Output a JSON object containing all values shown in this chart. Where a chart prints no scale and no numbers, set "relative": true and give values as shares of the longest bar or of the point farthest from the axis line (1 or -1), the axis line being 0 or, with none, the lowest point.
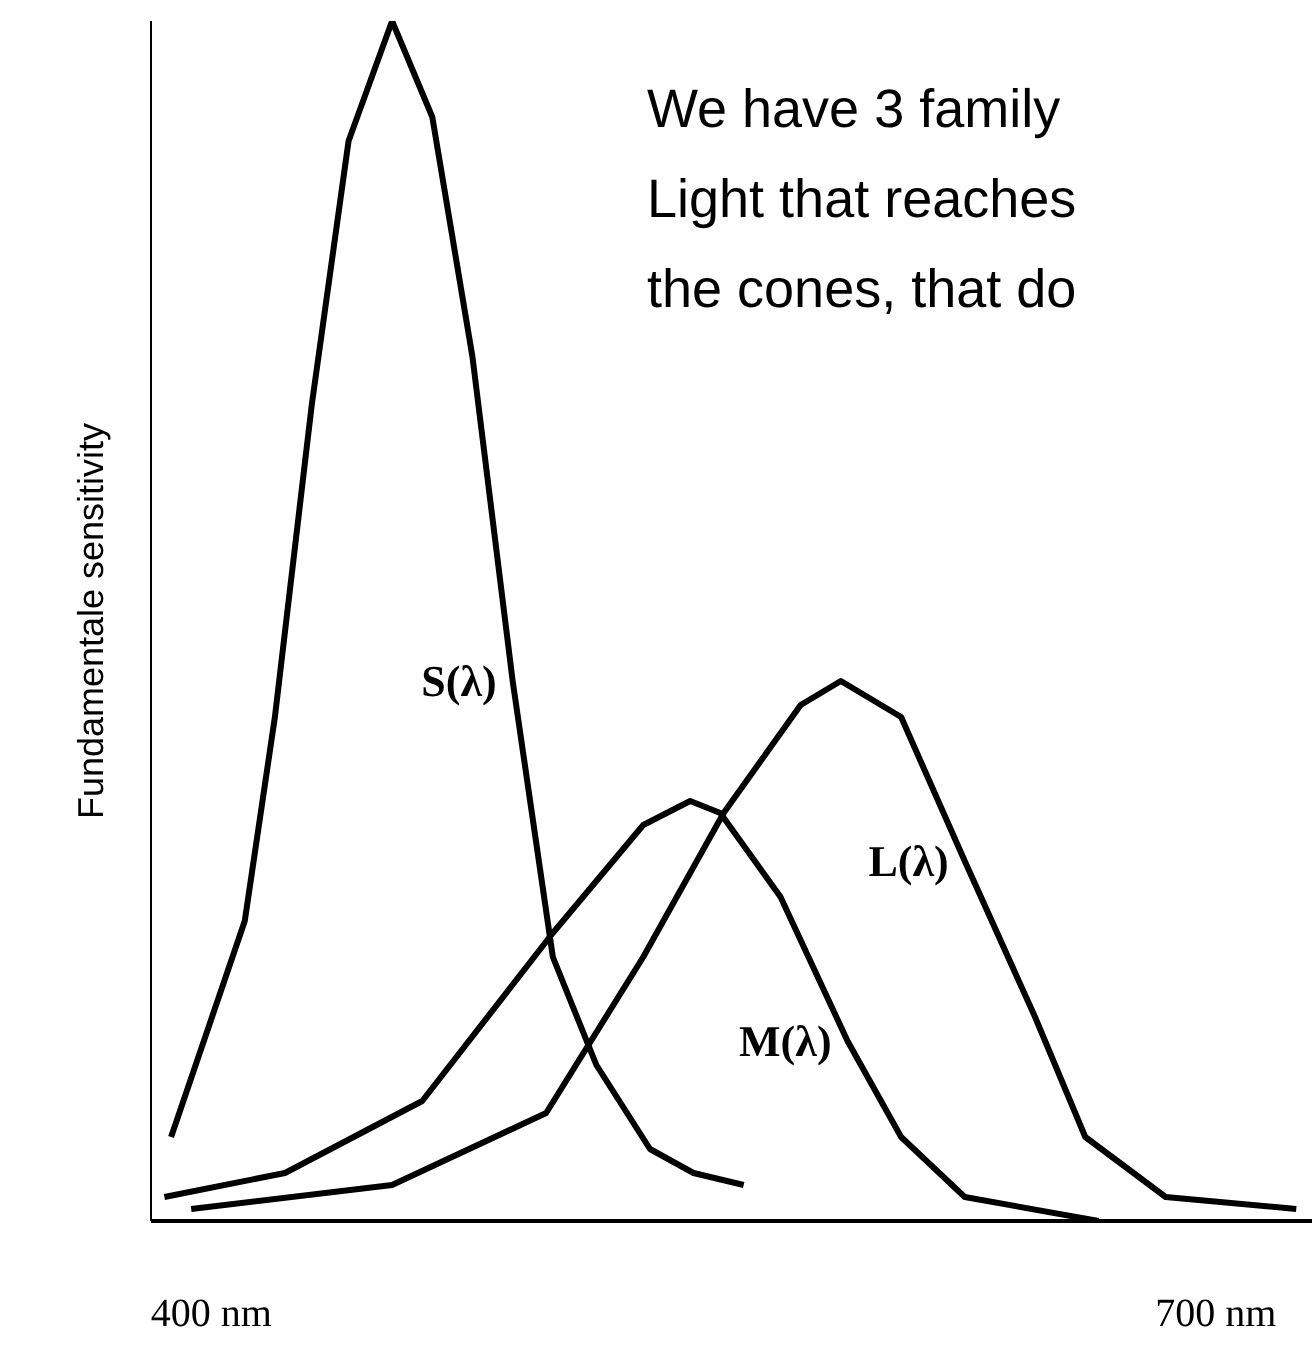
{
  "chart_data": {
    "type": "line",
    "relative": true,
    "xlim": [
      382,
      729
    ],
    "xticks": [
      {
        "value": 400,
        "label": "400 nm"
      },
      {
        "value": 700,
        "label": "700 nm"
      }
    ],
    "ylabel": "Fundamentale sensitivity",
    "grid": false,
    "marker": "none",
    "line_style": "solid",
    "tick_labels": "x",
    "annotations": [
      "We have 3 family",
      "Light that reaches",
      "the cones, that do"
    ],
    "series": [
      {
        "name": "S(λ)",
        "color": "#000000",
        "x": [
          388,
          410,
          419,
          430,
          441,
          454,
          466,
          478,
          490,
          502,
          515,
          531,
          544,
          559
        ],
        "values": [
          0.07,
          0.25,
          0.42,
          0.68,
          0.9,
          1,
          0.92,
          0.72,
          0.45,
          0.22,
          0.13,
          0.06,
          0.04,
          0.03
        ]
      },
      {
        "name": "M(λ)",
        "color": "#000000",
        "x": [
          386,
          422,
          463,
          502,
          529,
          543,
          552,
          570,
          590,
          606,
          625,
          665
        ],
        "values": [
          0.02,
          0.04,
          0.1,
          0.24,
          0.33,
          0.35,
          0.34,
          0.27,
          0.15,
          0.07,
          0.02,
          0.0
        ]
      },
      {
        "name": "L(λ)",
        "color": "#000000",
        "x": [
          394,
          454,
          500,
          529,
          553,
          576,
          588,
          606,
          625,
          646,
          661,
          685,
          724
        ],
        "values": [
          0.01,
          0.03,
          0.09,
          0.22,
          0.34,
          0.43,
          0.45,
          0.42,
          0.3,
          0.17,
          0.07,
          0.02,
          0.01
        ]
      }
    ]
  }
}
